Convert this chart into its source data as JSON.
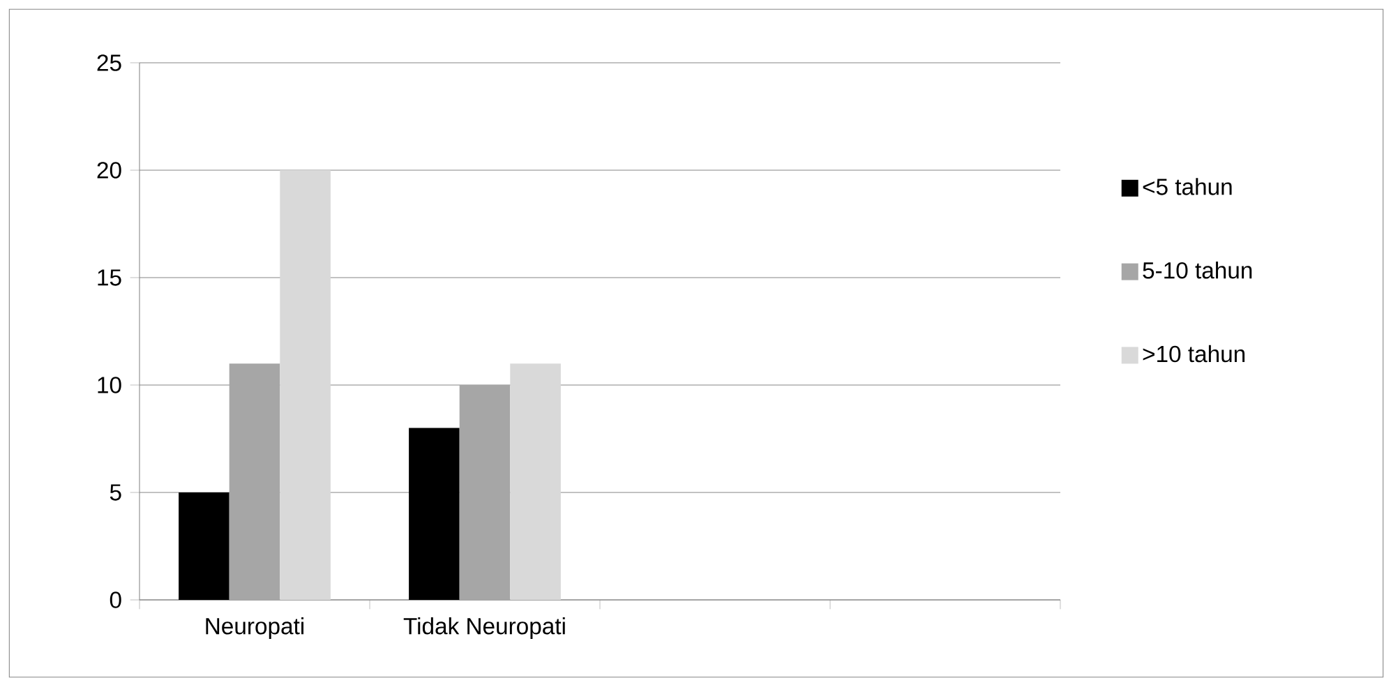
{
  "chart_data": {
    "type": "bar",
    "categories": [
      "Neuropati",
      "Tidak Neuropati",
      null,
      null
    ],
    "series": [
      {
        "name": "<5 tahun",
        "color": "#000000",
        "values": [
          5,
          8,
          null,
          null
        ]
      },
      {
        "name": "5-10 tahun",
        "color": "#a6a6a6",
        "values": [
          11,
          10,
          null,
          null
        ]
      },
      {
        "name": ">10 tahun",
        "color": "#d9d9d9",
        "values": [
          20,
          11,
          null,
          null
        ]
      }
    ],
    "ylim": [
      0,
      25
    ],
    "yticks": [
      0,
      5,
      10,
      15,
      20,
      25
    ],
    "grid": "y",
    "legend": "right"
  }
}
